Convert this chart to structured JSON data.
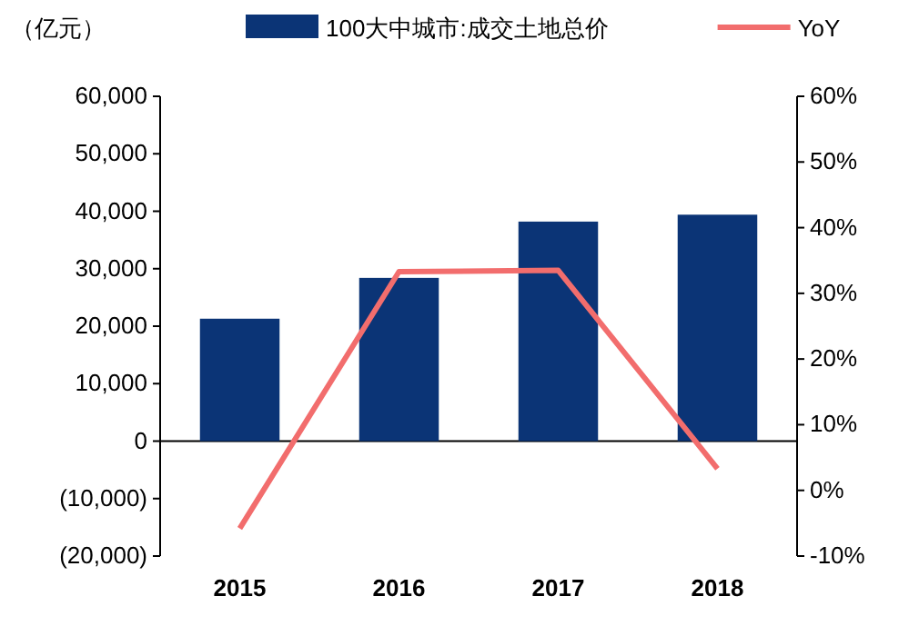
{
  "chart_data": {
    "type": "bar",
    "ylabel": "（亿元）",
    "categories": [
      "2015",
      "2016",
      "2017",
      "2018"
    ],
    "series": [
      {
        "name": "100大中城市:成交土地总价",
        "color": "#0b3476",
        "values": [
          21300,
          28400,
          38200,
          39400
        ]
      },
      {
        "name": "YoY",
        "type": "line",
        "axis": "y2",
        "color": "#f26d6d",
        "values": [
          -5.8,
          33.3,
          33.5,
          3.3
        ]
      }
    ],
    "ylim": [
      -20000,
      60000
    ],
    "yticks": [
      {
        "value": -20000,
        "label": "(20,000)"
      },
      {
        "value": -10000,
        "label": "(10,000)"
      },
      {
        "value": 0,
        "label": "0"
      },
      {
        "value": 10000,
        "label": "10,000"
      },
      {
        "value": 20000,
        "label": "20,000"
      },
      {
        "value": 30000,
        "label": "30,000"
      },
      {
        "value": 40000,
        "label": "40,000"
      },
      {
        "value": 50000,
        "label": "50,000"
      },
      {
        "value": 60000,
        "label": "60,000"
      }
    ],
    "y2lim": [
      -10,
      60
    ],
    "y2ticks": [
      {
        "value": -10,
        "label": "-10%"
      },
      {
        "value": 0,
        "label": "0%"
      },
      {
        "value": 10,
        "label": "10%"
      },
      {
        "value": 20,
        "label": "20%"
      },
      {
        "value": 30,
        "label": "30%"
      },
      {
        "value": 40,
        "label": "40%"
      },
      {
        "value": 50,
        "label": "50%"
      },
      {
        "value": 60,
        "label": "60%"
      }
    ],
    "legend": "top"
  }
}
